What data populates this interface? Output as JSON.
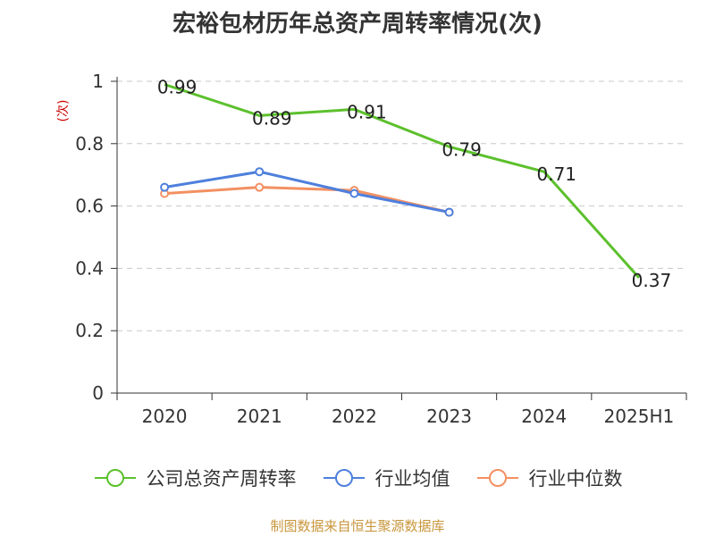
{
  "chart_data": {
    "type": "line",
    "title": "宏裕包材历年总资产周转率情况(次)",
    "ylabel": "(次)",
    "xlabel": "",
    "categories": [
      "2020",
      "2021",
      "2022",
      "2023",
      "2024",
      "2025H1"
    ],
    "ylim": [
      0,
      1
    ],
    "yticks": [
      "0",
      "0.2",
      "0.4",
      "0.6",
      "0.8",
      "1"
    ],
    "ytick_values": [
      0,
      0.2,
      0.4,
      0.6,
      0.8,
      1
    ],
    "grid": true,
    "legend_position": "bottom",
    "series": [
      {
        "name": "公司总资产周转率",
        "color": "#5cc02c",
        "markers": false,
        "show_labels": true,
        "values": [
          0.99,
          0.89,
          0.91,
          0.79,
          0.71,
          0.37
        ],
        "labels": [
          "0.99",
          "0.89",
          "0.91",
          "0.79",
          "0.71",
          "0.37"
        ]
      },
      {
        "name": "行业均值",
        "color": "#4e7fdc",
        "markers": true,
        "show_labels": false,
        "values": [
          0.66,
          0.71,
          0.64,
          0.58,
          null,
          null
        ]
      },
      {
        "name": "行业中位数",
        "color": "#f39062",
        "markers": true,
        "show_labels": false,
        "values": [
          0.64,
          0.66,
          0.65,
          0.58,
          null,
          null
        ]
      }
    ]
  },
  "source": "制图数据来自恒生聚源数据库"
}
